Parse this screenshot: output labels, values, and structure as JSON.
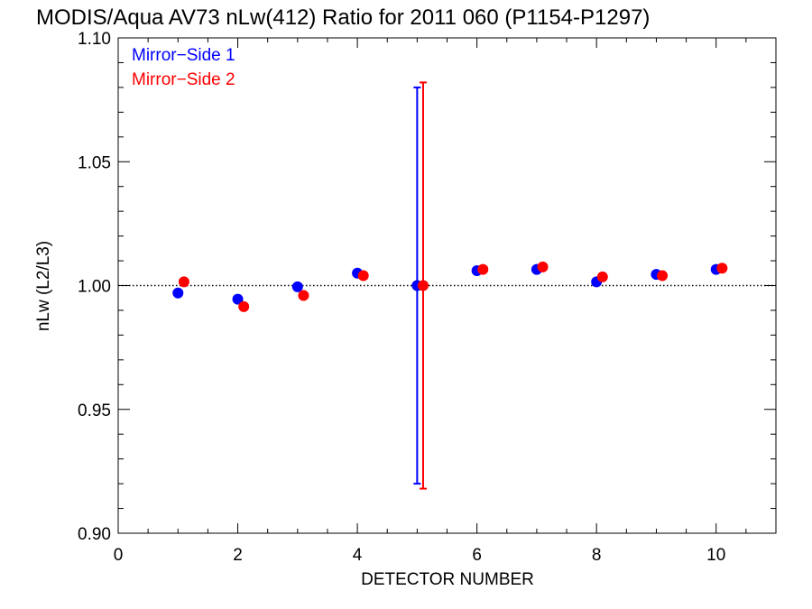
{
  "chart_data": {
    "type": "scatter",
    "title": "MODIS/Aqua AV73 nLw(412) Ratio for 2011 060 (P1154-P1297)",
    "xlabel": "DETECTOR NUMBER",
    "ylabel": "nLw (L2/L3)",
    "xlim": [
      0,
      11
    ],
    "ylim": [
      0.9,
      1.1
    ],
    "x_ticks": [
      0,
      2,
      4,
      6,
      8,
      10
    ],
    "x_tick_labels": [
      "0",
      "2",
      "4",
      "6",
      "8",
      "10"
    ],
    "y_ticks": [
      0.9,
      0.95,
      1.0,
      1.05,
      1.1
    ],
    "y_tick_labels": [
      "0.90",
      "0.95",
      "1.00",
      "1.05",
      "1.10"
    ],
    "reference_line": 1.0,
    "grid": false,
    "legend_position": "top-left",
    "series": [
      {
        "name": "Mirror−Side 1",
        "color": "#0000ff",
        "x": [
          1,
          2,
          3,
          4,
          5,
          6,
          7,
          8,
          9,
          10
        ],
        "y": [
          0.997,
          0.9945,
          0.9995,
          1.005,
          1.0,
          1.006,
          1.0065,
          1.0015,
          1.0045,
          1.0065
        ],
        "error_bar": {
          "x": 5,
          "low": 0.92,
          "high": 1.08
        }
      },
      {
        "name": "Mirror−Side 2",
        "color": "#ff0000",
        "x": [
          1.1,
          2.1,
          3.1,
          4.1,
          5.1,
          6.1,
          7.1,
          8.1,
          9.1,
          10.1
        ],
        "y": [
          1.0015,
          0.9915,
          0.996,
          1.004,
          1.0,
          1.0065,
          1.0075,
          1.0035,
          1.004,
          1.007
        ],
        "error_bar": {
          "x": 5.1,
          "low": 0.918,
          "high": 1.082
        }
      }
    ]
  }
}
